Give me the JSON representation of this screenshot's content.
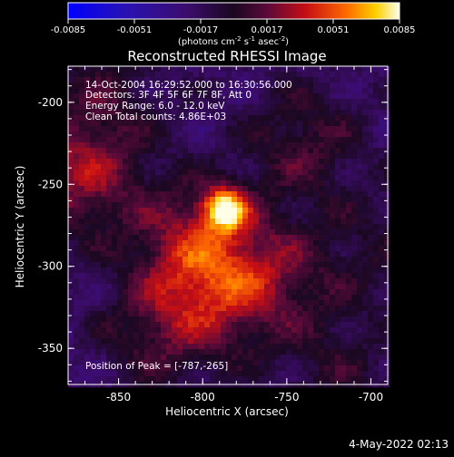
{
  "chart_data": {
    "type": "heatmap",
    "title": "Reconstructed RHESSI Image",
    "xlabel": "Heliocentric X (arcsec)",
    "ylabel": "Heliocentric Y (arcsec)",
    "xlim": [
      -880,
      -690
    ],
    "ylim": [
      -372,
      -178
    ],
    "x_ticks": [
      "-850",
      "-800",
      "-750",
      "-700"
    ],
    "y_ticks": [
      "-200",
      "-250",
      "-300",
      "-350"
    ],
    "colorbar": {
      "ticks": [
        "-0.0085",
        "-0.0051",
        "-0.0017",
        "0.0017",
        "0.0051",
        "0.0085"
      ],
      "range": [
        -0.0085,
        0.0085
      ],
      "units_label": "(photons cm",
      "units_sup1": "-2",
      "units_mid1": " s",
      "units_sup2": "-1",
      "units_mid2": " asec",
      "units_sup3": "-2",
      "units_close": ")"
    },
    "annotations": {
      "time_range": "14-Oct-2004 16:29:52.000 to 16:30:56.000",
      "detectors": "Detectors: 3F 4F 5F 6F 7F 8F, Att 0",
      "energy": "Energy Range: 6.0 - 12.0 keV",
      "method": "Clean     Total counts: 4.86E+03",
      "peak": "Position of Peak = [-787,-265]"
    },
    "peak": [
      -787,
      -265
    ],
    "sources": [
      {
        "x": -787,
        "y": -265,
        "amp": 0.0085
      },
      {
        "x": -805,
        "y": -285,
        "amp": 0.0042
      },
      {
        "x": -790,
        "y": -315,
        "amp": 0.0035
      },
      {
        "x": -872,
        "y": -245,
        "amp": 0.0045
      },
      {
        "x": -740,
        "y": -225,
        "amp": 0.003
      },
      {
        "x": -758,
        "y": -305,
        "amp": 0.0028
      },
      {
        "x": -825,
        "y": -340,
        "amp": 0.003
      },
      {
        "x": -860,
        "y": -195,
        "amp": 0.0022
      },
      {
        "x": -720,
        "y": -360,
        "amp": 0.002
      },
      {
        "x": -700,
        "y": -290,
        "amp": 0.0016
      }
    ]
  },
  "footer": {
    "date": "4-May-2022 02:13"
  },
  "colors": {
    "background": "#000000",
    "foreground": "#ffffff"
  }
}
